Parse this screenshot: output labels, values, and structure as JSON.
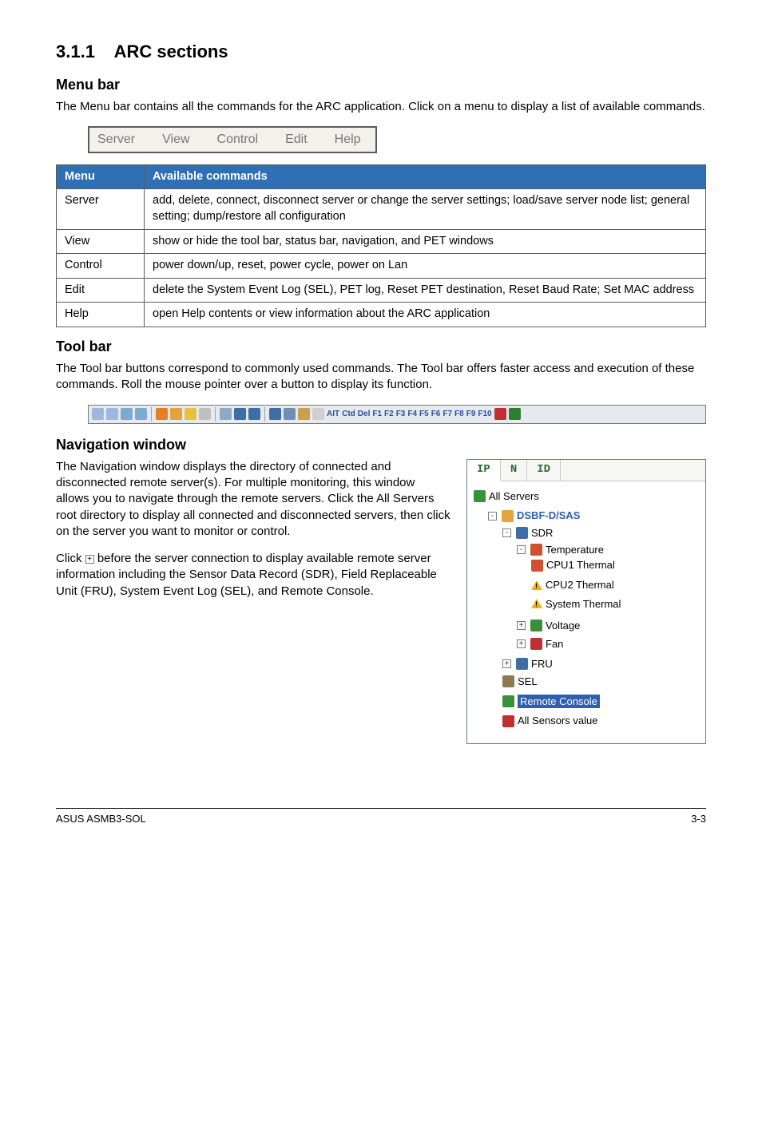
{
  "section": {
    "number": "3.1.1",
    "title": "ARC sections"
  },
  "menubar_sub": {
    "title": "Menu bar",
    "desc": "The Menu bar contains all the commands for the ARC application. Click on a menu to display a list of available commands.",
    "items": [
      "Server",
      "View",
      "Control",
      "Edit",
      "Help"
    ]
  },
  "cmd_table": {
    "headers": [
      "Menu",
      "Available commands"
    ],
    "rows": [
      [
        "Server",
        "add, delete, connect, disconnect server or change the server settings; load/save server node list; general setting; dump/restore all configuration"
      ],
      [
        "View",
        "show or hide the tool bar, status bar, navigation, and PET windows"
      ],
      [
        "Control",
        "power down/up, reset, power cycle, power on Lan"
      ],
      [
        "Edit",
        "delete the System Event Log (SEL), PET log, Reset PET destination, Reset Baud Rate; Set MAC address"
      ],
      [
        "Help",
        "open Help contents or view information about the ARC application"
      ]
    ],
    "header_bg": "#2f6fb5",
    "header_fg": "#ffffff",
    "border_color": "#5a5a5a"
  },
  "toolbar_sub": {
    "title": "Tool bar",
    "desc": "The Tool bar buttons correspond to commonly used commands. The Tool bar offers faster access and execution of these commands. Roll the mouse pointer over a button to display its function."
  },
  "toolbar_strip": {
    "group1_colors": [
      "#9fb7e0",
      "#9fb7e0",
      "#7fa9d0",
      "#7fa9d0"
    ],
    "group2_colors": [
      "#e67e22",
      "#e6a23c",
      "#e6c23c",
      "#bfbfbf"
    ],
    "group3_colors": [
      "#8fa8c8",
      "#3d6fa5",
      "#3d6fa5"
    ],
    "group4_colors": [
      "#3d6fa5",
      "#6f8fb5",
      "#c8a050",
      "#cfcfcf"
    ],
    "key_labels": [
      "AIT",
      "Ctd",
      "Del",
      "F1",
      "F2",
      "F3",
      "F4",
      "F5",
      "F6",
      "F7",
      "F8",
      "F9",
      "F10"
    ],
    "end_colors": [
      "#c03030",
      "#2e7d32"
    ],
    "bg": "#e6e9ee"
  },
  "nav_sub": {
    "title": "Navigation window",
    "p1": "The Navigation window displays the directory of connected and disconnected remote server(s). For multiple monitoring, this window allows you to navigate through the remote servers. Click the All Servers root directory to display all connected and disconnected servers, then click on the server you want to monitor or control.",
    "p2a": "Click ",
    "p2b": " before the server connection to display available remote server information including the Sensor Data Record (SDR), Field Replaceable Unit (FRU), System Event Log (SEL), and Remote Console."
  },
  "nav_panel": {
    "tabs": [
      "IP",
      "N",
      "ID"
    ],
    "root": "All Servers",
    "server": "DSBF-D/SAS",
    "sdr": "SDR",
    "temp": "Temperature",
    "cpu1": "CPU1 Thermal",
    "cpu2": "CPU2 Thermal",
    "sys": "System Thermal",
    "volt": "Voltage",
    "fan": "Fan",
    "fru": "FRU",
    "sel": "SEL",
    "remote": "Remote Console",
    "allsens": "All Sensors value",
    "icon_colors": {
      "root": "#3a8f3a",
      "server": "#e6a23c",
      "sdr": "#3d6fa5",
      "temp": "#d05030",
      "thermometer": "#d05030",
      "voltage": "#3a8f3a",
      "fan": "#c03030",
      "fru": "#3d6fa5",
      "sel": "#8f7a50",
      "remote_bg": "#2f5fb0",
      "allsens": "#c03030"
    }
  },
  "footer": {
    "left": "ASUS ASMB3-SOL",
    "right": "3-3"
  }
}
